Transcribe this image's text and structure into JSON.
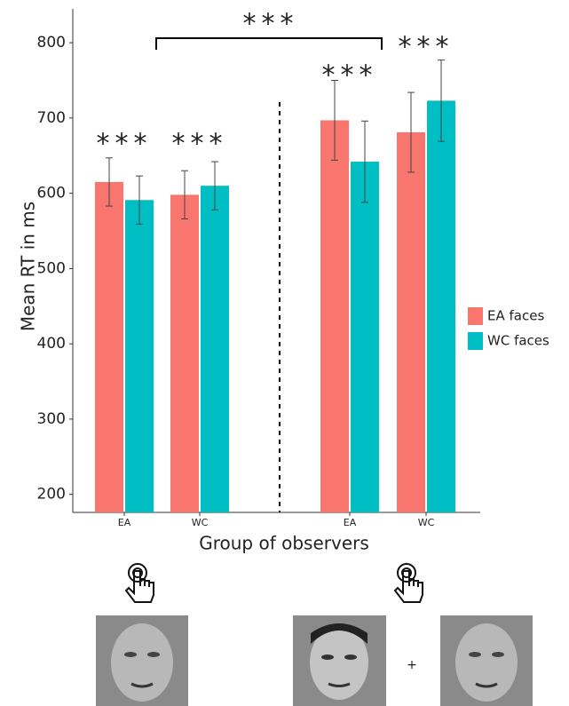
{
  "chart_data": {
    "type": "bar",
    "y_label": "Mean RT in ms",
    "x_label": "Group of observers",
    "categories": [
      "EA",
      "WC",
      "EA",
      "WC"
    ],
    "series": [
      {
        "name": "EA faces",
        "color": "#f8766d",
        "values": [
          615,
          598,
          697,
          681
        ],
        "errors": [
          32,
          32,
          53,
          53
        ]
      },
      {
        "name": "WC faces",
        "color": "#00bfc4",
        "values": [
          591,
          610,
          642,
          723
        ],
        "errors": [
          32,
          32,
          54,
          54
        ]
      }
    ],
    "ylim": [
      176,
      845
    ],
    "yticks": [
      200,
      300,
      400,
      500,
      600,
      700,
      800
    ],
    "annotations": [
      "***",
      "***",
      "***",
      "***",
      "***"
    ],
    "plus_sign": "+"
  }
}
